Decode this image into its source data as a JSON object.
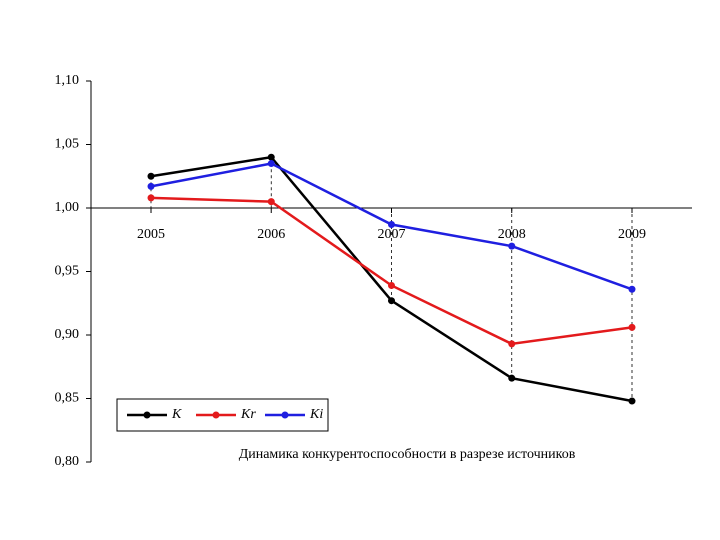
{
  "chart_data": {
    "type": "line",
    "annotation": "Динамика конкурентоспособности в разрезе источников",
    "categories": [
      "2005",
      "2006",
      "2007",
      "2008",
      "2009"
    ],
    "series": [
      {
        "name": "K",
        "color": "#000000",
        "values": [
          1.025,
          1.04,
          0.927,
          0.866,
          0.848
        ]
      },
      {
        "name": "Kr",
        "color": "#e31a1c",
        "values": [
          1.008,
          1.005,
          0.939,
          0.893,
          0.906
        ]
      },
      {
        "name": "Ki",
        "color": "#1f1fe0",
        "values": [
          1.017,
          1.035,
          0.987,
          0.97,
          0.936
        ]
      }
    ],
    "ylim": [
      0.8,
      1.1
    ],
    "yticks": [
      {
        "value": 0.8,
        "label": "0,80"
      },
      {
        "value": 0.85,
        "label": "0,85"
      },
      {
        "value": 0.9,
        "label": "0,90"
      },
      {
        "value": 0.95,
        "label": "0,95"
      },
      {
        "value": 1.0,
        "label": "1,00"
      },
      {
        "value": 1.05,
        "label": "1,05"
      },
      {
        "value": 1.1,
        "label": "1,10"
      }
    ],
    "x_axis_crossing": 1.0,
    "drop_lines": true,
    "legend": "lower left"
  }
}
